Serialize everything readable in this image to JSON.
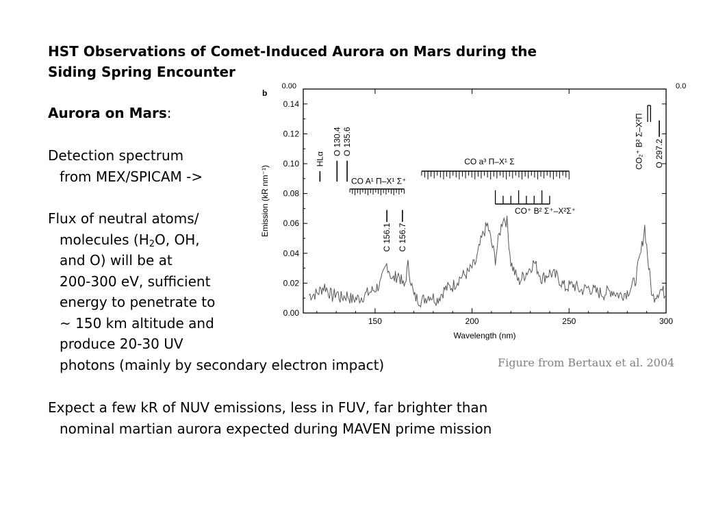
{
  "slide": {
    "title_line1": "HST Observations of Comet-Induced Aurora on Mars during the",
    "title_line2": "Siding Spring Encounter",
    "aurora_heading": "Aurora on Mars",
    "aurora_colon": ":",
    "detection_line1": "Detection spectrum",
    "detection_line2": "from MEX/SPICAM ->",
    "flux_line1": "Flux of neutral atoms/",
    "flux_line2a": "molecules (H",
    "flux_line2_sub": "2",
    "flux_line2b": "O, OH,",
    "flux_line3": "and O) will be at",
    "flux_line4": "200-300 eV, sufficient",
    "flux_line5": "energy to penetrate to",
    "flux_line6": "~ 150 km altitude and",
    "flux_line7": "produce 20-30 UV",
    "flux_line8": "photons (mainly by secondary electron impact)",
    "expect_line1": "Expect a few kR of NUV emissions, less in FUV, far brighter than",
    "expect_line2": "nominal martian aurora expected during MAVEN prime mission",
    "figure_caption": "Figure from Bertaux et al. 2004"
  },
  "chart_data": {
    "type": "line",
    "panel_label": "b",
    "xlabel": "Wavelength (nm)",
    "ylabel": "Emission (kR nm⁻¹)",
    "xlim": [
      113,
      300
    ],
    "ylim": [
      0,
      0.15
    ],
    "xticks": [
      150,
      200,
      250,
      300
    ],
    "yticks": [
      0.0,
      0.02,
      0.04,
      0.06,
      0.08,
      0.1,
      0.12,
      0.14
    ],
    "ytick_labels": [
      "0.00",
      "0.02",
      "0.04",
      "0.06",
      "0.08",
      "0.10",
      "0.12",
      "0.14"
    ],
    "spectrum": {
      "x": [
        116,
        120,
        124,
        128,
        130.4,
        132,
        135.6,
        138,
        142,
        146,
        150,
        153,
        156.1,
        159,
        162,
        165,
        167,
        170,
        174,
        178,
        182,
        186,
        190,
        194,
        198,
        202,
        204,
        206,
        208,
        210,
        212,
        214,
        216,
        218,
        220,
        222,
        224,
        228,
        232,
        236,
        240,
        244,
        248,
        252,
        256,
        260,
        264,
        268,
        272,
        276,
        280,
        284,
        287,
        289,
        291,
        293,
        297.2,
        300
      ],
      "y": [
        0.012,
        0.013,
        0.018,
        0.011,
        0.014,
        0.01,
        0.012,
        0.009,
        0.01,
        0.013,
        0.016,
        0.02,
        0.033,
        0.022,
        0.026,
        0.017,
        0.032,
        0.011,
        0.008,
        0.012,
        0.009,
        0.016,
        0.018,
        0.024,
        0.027,
        0.034,
        0.045,
        0.054,
        0.059,
        0.047,
        0.036,
        0.052,
        0.064,
        0.061,
        0.034,
        0.027,
        0.021,
        0.027,
        0.034,
        0.023,
        0.027,
        0.024,
        0.017,
        0.019,
        0.015,
        0.017,
        0.014,
        0.013,
        0.015,
        0.012,
        0.014,
        0.021,
        0.04,
        0.058,
        0.031,
        0.01,
        0.016,
        0.012
      ]
    },
    "line_labels": [
      {
        "label": "HLα",
        "x": 121.6
      },
      {
        "label": "O 130.4",
        "x": 130.4
      },
      {
        "label": "O 135.6",
        "x": 135.6
      },
      {
        "label": "C 156.1",
        "x": 156.1
      },
      {
        "label": "C 156.7",
        "x": 156.7
      },
      {
        "label": "O 297.2",
        "x": 297.2
      }
    ],
    "bands": [
      {
        "label": "CO  A¹ Π–X¹ Σ⁺",
        "range": [
          137,
          165
        ]
      },
      {
        "label": "CO  a³ Π–X¹ Σ",
        "range": [
          174,
          250
        ]
      },
      {
        "label": "CO⁺  B² Σ⁺–X²Σ⁺",
        "range": [
          212,
          240
        ]
      },
      {
        "label": "CO₂⁺ B² Σ–X²Π",
        "range": [
          289,
          290
        ]
      }
    ],
    "top_partial_labels": [
      "0.00",
      "0.0"
    ]
  }
}
